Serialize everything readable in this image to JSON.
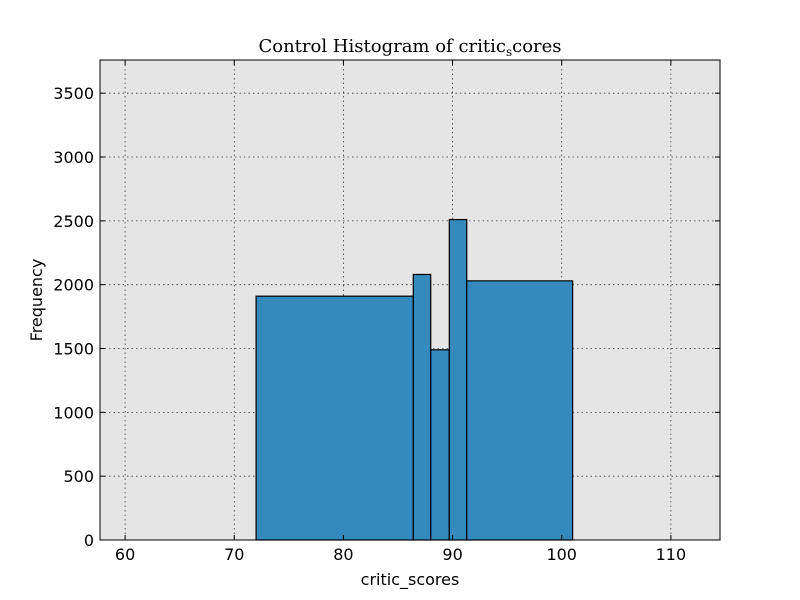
{
  "chart_data": {
    "type": "bar",
    "title": "Control Histogram of critic_scores",
    "title_display": {
      "main": "Control Histogram of critic",
      "sub": "s",
      "rest": "cores"
    },
    "xlabel": "critic_scores",
    "ylabel": "Frequency",
    "xlim": [
      57.7,
      114.5
    ],
    "ylim": [
      0,
      3760
    ],
    "xticks": [
      60,
      70,
      80,
      90,
      100,
      110
    ],
    "yticks": [
      0,
      500,
      1000,
      1500,
      2000,
      2500,
      3000,
      3500
    ],
    "grid": true,
    "bins": [
      {
        "x0": 72.0,
        "x1": 86.4,
        "value": 1910
      },
      {
        "x0": 86.4,
        "x1": 88.0,
        "value": 2080
      },
      {
        "x0": 88.0,
        "x1": 89.7,
        "value": 1490
      },
      {
        "x0": 89.7,
        "x1": 91.3,
        "value": 2510
      },
      {
        "x0": 91.3,
        "x1": 101.0,
        "value": 2030
      }
    ],
    "colors": {
      "bar": "#348ABD",
      "edge": "#000000",
      "plot_bg": "#E5E5E5"
    }
  }
}
